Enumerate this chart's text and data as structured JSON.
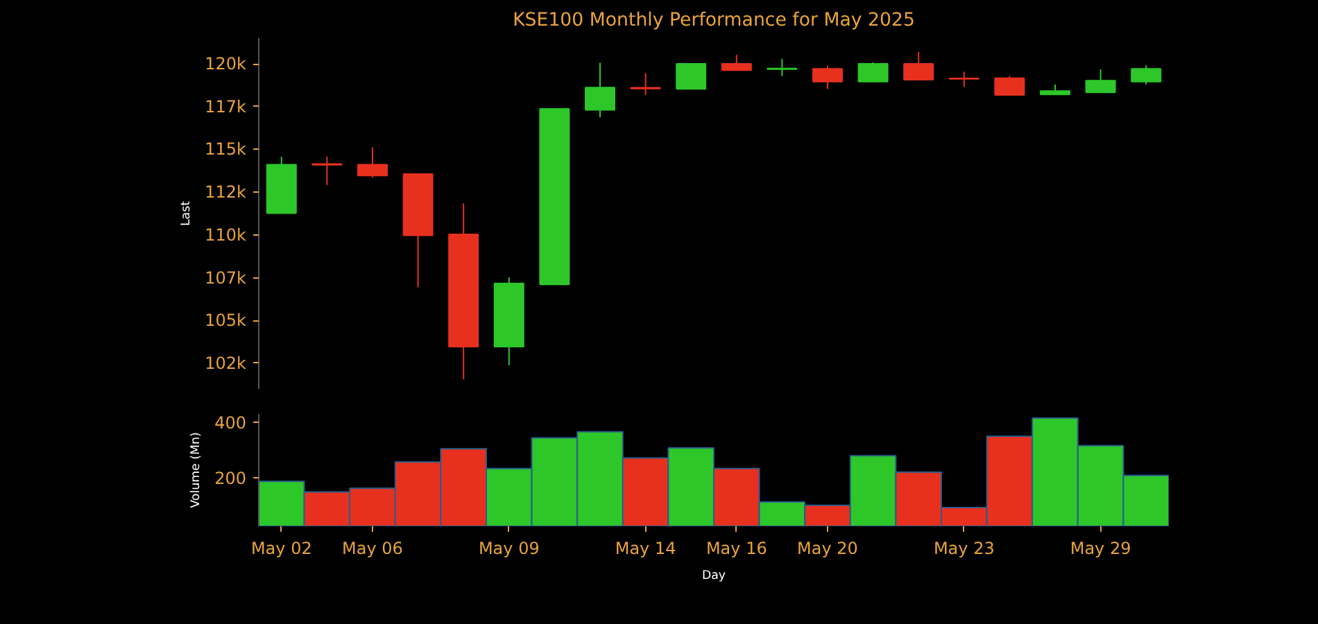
{
  "chart_data": [
    {
      "type": "candlestick",
      "title": "KSE100 Monthly Performance for May 2025",
      "ylabel": "Last",
      "tick_labels": "y",
      "categories": [
        null,
        null,
        null,
        null,
        null,
        null,
        null,
        null,
        null,
        null,
        null,
        null,
        null,
        null,
        null,
        null,
        null,
        null,
        null,
        null
      ],
      "ylim": [
        101000,
        121500
      ],
      "ohlc": [
        [
          111270,
          114570,
          111270,
          114110
        ],
        [
          114150,
          114570,
          112920,
          114100
        ],
        [
          114110,
          115120,
          113360,
          113470
        ],
        [
          113560,
          113560,
          106940,
          109970
        ],
        [
          110030,
          111850,
          101570,
          103470
        ],
        [
          103470,
          107520,
          102380,
          107170
        ],
        [
          107110,
          117370,
          107110,
          117370
        ],
        [
          117310,
          120060,
          116880,
          118610
        ],
        [
          118600,
          119450,
          118180,
          118550
        ],
        [
          118530,
          120000,
          118530,
          120000
        ],
        [
          120000,
          120520,
          119630,
          119630
        ],
        [
          119690,
          120290,
          119280,
          119730
        ],
        [
          119710,
          119890,
          118530,
          118960
        ],
        [
          118960,
          120090,
          118960,
          120000
        ],
        [
          120000,
          120690,
          119070,
          119070
        ],
        [
          119150,
          119540,
          118640,
          119120
        ],
        [
          119160,
          119280,
          118180,
          118180
        ],
        [
          118210,
          118790,
          118210,
          118410
        ],
        [
          118330,
          119680,
          118330,
          119020
        ],
        [
          118960,
          119910,
          118790,
          119710
        ]
      ],
      "colors": [
        "#2dc72a",
        "#e8301f",
        "#e8301f",
        "#e8301f",
        "#e8301f",
        "#2dc72a",
        "#2dc72a",
        "#2dc72a",
        "#e8301f",
        "#2dc72a",
        "#e8301f",
        "#2dc72a",
        "#e8301f",
        "#2dc72a",
        "#e8301f",
        "#e8301f",
        "#e8301f",
        "#2dc72a",
        "#2dc72a",
        "#2dc72a"
      ],
      "yticks": [
        {
          "value": 102500,
          "label": "102k"
        },
        {
          "value": 105000,
          "label": "105k"
        },
        {
          "value": 107500,
          "label": "107k"
        },
        {
          "value": 110000,
          "label": "110k"
        },
        {
          "value": 112500,
          "label": "112k"
        },
        {
          "value": 115000,
          "label": "115k"
        },
        {
          "value": 117500,
          "label": "117k"
        },
        {
          "value": 120000,
          "label": "120k"
        }
      ]
    },
    {
      "type": "bar",
      "xlabel": "Day",
      "ylabel": "Volume (Mn)",
      "categories": [
        "May 02",
        null,
        "May 06",
        null,
        null,
        "May 09",
        null,
        null,
        "May 14",
        null,
        "May 16",
        null,
        "May 20",
        null,
        null,
        "May 23",
        null,
        null,
        "May 29",
        null
      ],
      "values": [
        188,
        150,
        163,
        258,
        305,
        234,
        344,
        366,
        272,
        308,
        234,
        114,
        102,
        280,
        221,
        94,
        350,
        415,
        316,
        209
      ],
      "colors": [
        "#2dc72a",
        "#e8301f",
        "#e8301f",
        "#e8301f",
        "#e8301f",
        "#2dc72a",
        "#2dc72a",
        "#2dc72a",
        "#e8301f",
        "#2dc72a",
        "#e8301f",
        "#2dc72a",
        "#e8301f",
        "#2dc72a",
        "#e8301f",
        "#e8301f",
        "#e8301f",
        "#2dc72a",
        "#2dc72a",
        "#2dc72a"
      ],
      "ylim": [
        27,
        430
      ],
      "yticks": [
        200,
        400
      ]
    }
  ]
}
